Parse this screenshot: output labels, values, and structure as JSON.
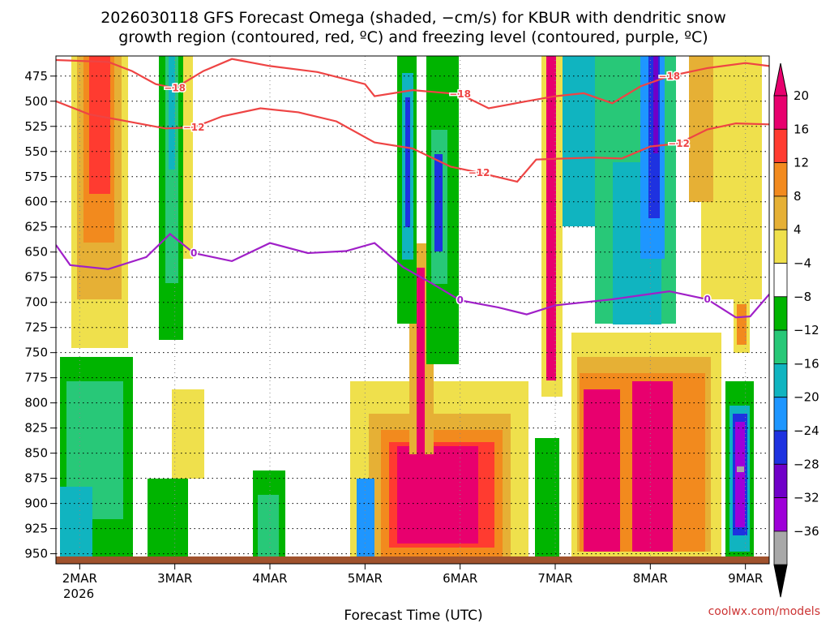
{
  "chart_data": {
    "type": "heatmap",
    "title_line1": "2026030118 GFS Forecast Omega (shaded, −cm/s) for KBUR with dendritic snow",
    "title_line2": "growth region (contoured, red, ºC) and freezing level (contoured, purple, ºC)",
    "xlabel": "Forecast Time (UTC)",
    "credit": "coolwx.com/models",
    "x_ticks": [
      "2MAR",
      "3MAR",
      "4MAR",
      "5MAR",
      "6MAR",
      "7MAR",
      "8MAR",
      "9MAR"
    ],
    "x_year": "2026",
    "x_range_days": [
      1.75,
      9.25
    ],
    "y_ticks": [
      "475",
      "500",
      "525",
      "550",
      "575",
      "600",
      "625",
      "650",
      "675",
      "700",
      "725",
      "750",
      "775",
      "800",
      "825",
      "850",
      "875",
      "900",
      "925",
      "950"
    ],
    "y_range_hpa": [
      455,
      960
    ],
    "colorbar_ticks": [
      "20",
      "16",
      "12",
      "8",
      "4",
      "−4",
      "−8",
      "−12",
      "−16",
      "−20",
      "−24",
      "−28",
      "−32",
      "−36"
    ],
    "colorbar_colors": [
      "#e8006e",
      "#ff3b30",
      "#f28a1e",
      "#e6b035",
      "#efe04c",
      "#ffffff",
      "#00b400",
      "#28c878",
      "#10b4c0",
      "#1e96ff",
      "#1e32e0",
      "#7000c8",
      "#9e00d8",
      "#a8a8a8"
    ],
    "contours": [
      {
        "name": "-18 C",
        "color": "#ee4444",
        "label": "−18",
        "points": [
          [
            1.75,
            459
          ],
          [
            2.3,
            461
          ],
          [
            2.55,
            470
          ],
          [
            2.8,
            483
          ],
          [
            3.0,
            487
          ],
          [
            3.3,
            470
          ],
          [
            3.6,
            458
          ],
          [
            4.0,
            465
          ],
          [
            4.5,
            471
          ],
          [
            5.0,
            483
          ],
          [
            5.1,
            495
          ],
          [
            5.5,
            489
          ],
          [
            6.0,
            493
          ],
          [
            6.3,
            507
          ],
          [
            6.7,
            500
          ],
          [
            7.0,
            495
          ],
          [
            7.3,
            492
          ],
          [
            7.6,
            502
          ],
          [
            7.9,
            485
          ],
          [
            8.2,
            475
          ],
          [
            8.6,
            467
          ],
          [
            9.0,
            462
          ],
          [
            9.25,
            465
          ]
        ]
      },
      {
        "name": "-12 C",
        "color": "#ee4444",
        "label": "−12",
        "points": [
          [
            1.75,
            500
          ],
          [
            2.1,
            513
          ],
          [
            2.5,
            520
          ],
          [
            2.9,
            527
          ],
          [
            3.2,
            526
          ],
          [
            3.5,
            515
          ],
          [
            3.9,
            507
          ],
          [
            4.3,
            511
          ],
          [
            4.7,
            520
          ],
          [
            5.1,
            541
          ],
          [
            5.5,
            547
          ],
          [
            5.9,
            565
          ],
          [
            6.2,
            571
          ],
          [
            6.6,
            580
          ],
          [
            6.8,
            558
          ],
          [
            7.1,
            557
          ],
          [
            7.4,
            556
          ],
          [
            7.7,
            557
          ],
          [
            8.0,
            545
          ],
          [
            8.3,
            542
          ],
          [
            8.6,
            528
          ],
          [
            8.9,
            522
          ],
          [
            9.25,
            523
          ]
        ]
      },
      {
        "name": "0 C freezing level",
        "color": "#a020c8",
        "label": "0",
        "points": [
          [
            1.75,
            643
          ],
          [
            1.9,
            663
          ],
          [
            2.3,
            667
          ],
          [
            2.7,
            655
          ],
          [
            2.95,
            632
          ],
          [
            3.2,
            651
          ],
          [
            3.6,
            659
          ],
          [
            4.0,
            641
          ],
          [
            4.4,
            651
          ],
          [
            4.8,
            649
          ],
          [
            5.1,
            641
          ],
          [
            5.4,
            665
          ],
          [
            5.7,
            681
          ],
          [
            6.0,
            698
          ],
          [
            6.4,
            705
          ],
          [
            6.7,
            712
          ],
          [
            7.0,
            703
          ],
          [
            7.3,
            700
          ],
          [
            7.6,
            697
          ],
          [
            7.9,
            693
          ],
          [
            8.2,
            689
          ],
          [
            8.6,
            697
          ],
          [
            8.9,
            715
          ],
          [
            9.05,
            714
          ],
          [
            9.25,
            692
          ]
        ]
      }
    ]
  }
}
